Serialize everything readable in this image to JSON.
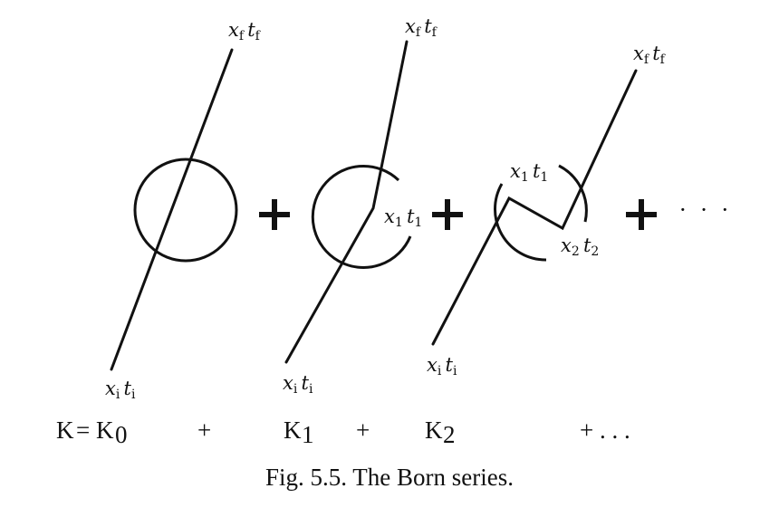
{
  "labels": {
    "d0_final": "x_f t_f",
    "d0_initial": "x_i t_i",
    "d1_final": "x_f t_f",
    "d1_vertex": "x_1 t_1",
    "d1_initial": "x_i t_i",
    "d2_final": "x_f t_f",
    "d2_vertex1": "x_1 t_1",
    "d2_vertex2": "x_2 t_2",
    "d2_initial": "x_i t_i"
  },
  "ellipsis": "· · ·",
  "equation": {
    "lhs": "K",
    "eq": "=",
    "terms": [
      "K",
      "K",
      "K"
    ],
    "subscripts": [
      "0",
      "1",
      "2"
    ],
    "plus": "+",
    "tail": "+ . . ."
  },
  "caption": "Fig. 5.5.  The Born series."
}
